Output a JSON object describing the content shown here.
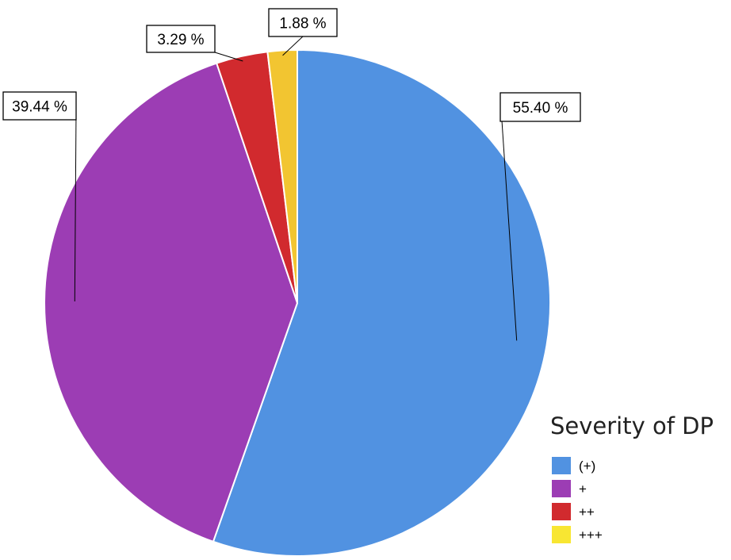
{
  "chart_data": {
    "type": "pie",
    "title": "",
    "legend_title": "Severity of DP",
    "legend_position": "bottom-right",
    "slices": [
      {
        "label": "(+)",
        "value": 55.4,
        "display": "55.40 %",
        "color": "#5192E1"
      },
      {
        "label": "+",
        "value": 39.44,
        "display": "39.44 %",
        "color": "#9C3DB4"
      },
      {
        "label": "++",
        "value": 3.29,
        "display": "3.29 %",
        "color": "#D12A2E"
      },
      {
        "label": "+++",
        "value": 1.88,
        "display": "1.88 %",
        "color": "#F2C531"
      }
    ],
    "legend_swatch_colors": [
      "#5192E1",
      "#9C3DB4",
      "#D12A2E",
      "#F8E632"
    ]
  }
}
